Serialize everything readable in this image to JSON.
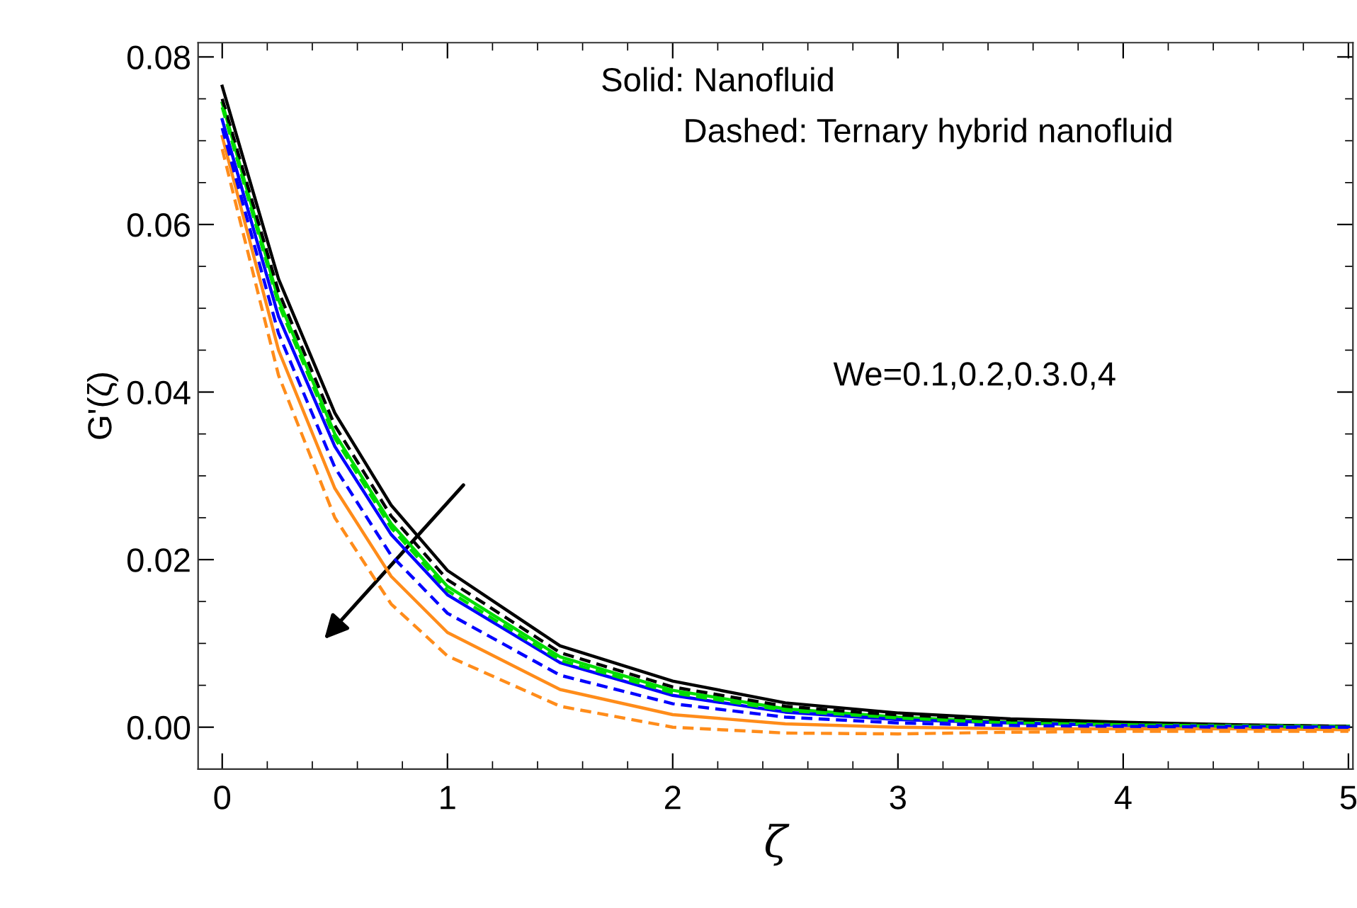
{
  "chart_data": {
    "type": "line",
    "xlabel": "ζ",
    "ylabel": "G'(ζ)",
    "xlim": [
      -0.107,
      5.02
    ],
    "ylim": [
      -0.005,
      0.0817
    ],
    "xticks": [
      0,
      1,
      2,
      3,
      4,
      5
    ],
    "yticks": [
      {
        "value": 0,
        "label": "0.00"
      },
      {
        "value": 0.02,
        "label": "0.02"
      },
      {
        "value": 0.04,
        "label": "0.04"
      },
      {
        "value": 0.06,
        "label": "0.06"
      },
      {
        "value": 0.08,
        "label": "0.08"
      }
    ],
    "grid": false,
    "legend": false,
    "marker": "none",
    "x": [
      0,
      0.25,
      0.5,
      0.75,
      1,
      1.5,
      2,
      2.5,
      3,
      3.5,
      4,
      4.5,
      5
    ],
    "series": [
      {
        "color": "#000000",
        "line_style": "solid",
        "values": [
          0.0765,
          0.0535,
          0.0375,
          0.0265,
          0.0187,
          0.0097,
          0.0055,
          0.0029,
          0.0017,
          0.001,
          0.0006,
          0.0003,
          0.0001
        ]
      },
      {
        "color": "#000000",
        "line_style": "dashed",
        "values": [
          0.075,
          0.052,
          0.036,
          0.0252,
          0.0176,
          0.0089,
          0.0048,
          0.0025,
          0.0014,
          0.0008,
          0.0004,
          0.0002,
          0.0001
        ]
      },
      {
        "color": "#00dd00",
        "line_style": "solid",
        "values": [
          0.0745,
          0.051,
          0.035,
          0.0243,
          0.0168,
          0.0084,
          0.0044,
          0.0022,
          0.0012,
          0.0006,
          0.0003,
          0.0002,
          0.0001
        ]
      },
      {
        "color": "#00dd00",
        "line_style": "dashed",
        "values": [
          0.074,
          0.0505,
          0.0345,
          0.0238,
          0.0163,
          0.008,
          0.0041,
          0.002,
          0.0011,
          0.0005,
          0.0003,
          0.0001,
          0.0
        ]
      },
      {
        "color": "#0000ff",
        "line_style": "solid",
        "values": [
          0.0725,
          0.049,
          0.0335,
          0.023,
          0.0158,
          0.0077,
          0.0038,
          0.0018,
          0.0009,
          0.0005,
          0.0002,
          0.0001,
          0.0
        ]
      },
      {
        "color": "#0000ff",
        "line_style": "dashed",
        "values": [
          0.0715,
          0.047,
          0.031,
          0.0205,
          0.0136,
          0.0062,
          0.0028,
          0.0012,
          0.0005,
          0.0002,
          0.0001,
          0.0,
          0.0
        ]
      },
      {
        "color": "#ff8c1a",
        "line_style": "solid",
        "values": [
          0.0705,
          0.045,
          0.0285,
          0.018,
          0.0113,
          0.0045,
          0.0015,
          0.0004,
          0.0,
          -0.0002,
          -0.0002,
          -0.0002,
          -0.0003
        ]
      },
      {
        "color": "#ff8c1a",
        "line_style": "dashed",
        "values": [
          0.069,
          0.042,
          0.025,
          0.0147,
          0.0085,
          0.0025,
          0.0,
          -0.0007,
          -0.0008,
          -0.0006,
          -0.0005,
          -0.0005,
          -0.0005
        ]
      }
    ],
    "annotations": [
      "Solid: Nanofluid",
      "Dashed: Ternary hybrid nanofluid",
      "We=0.1,0.2,0.3.0,4"
    ]
  }
}
